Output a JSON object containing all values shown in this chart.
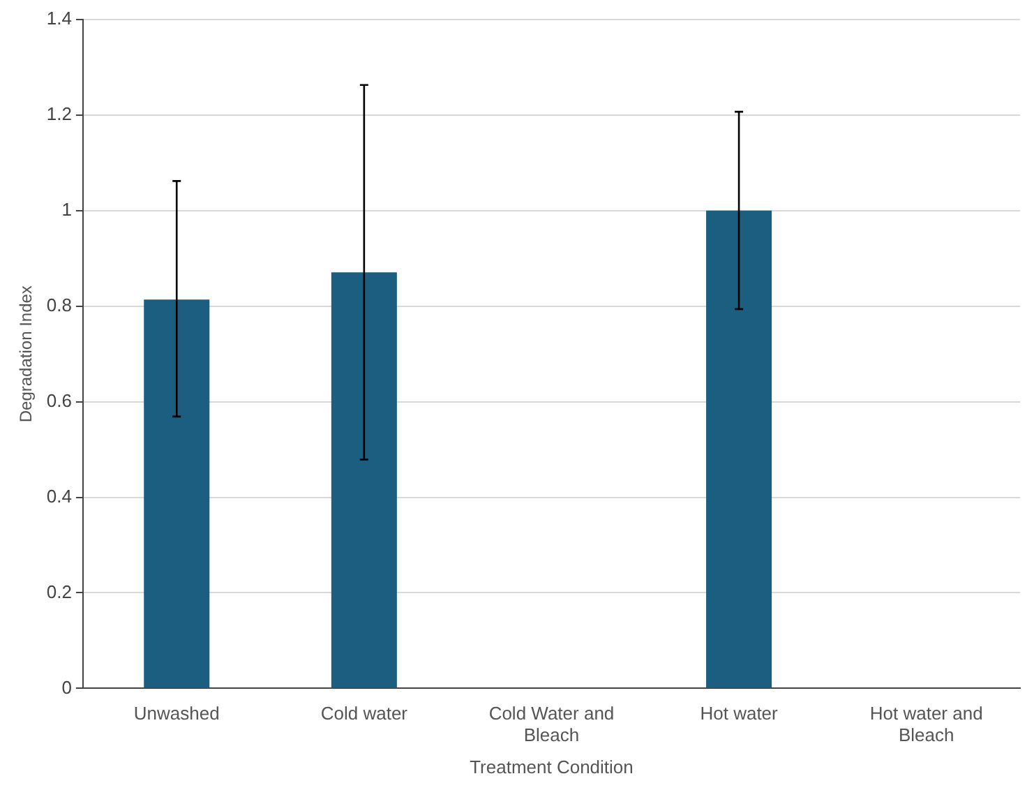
{
  "chart_data": {
    "type": "bar",
    "xlabel": "Treatment Condition",
    "ylabel": "Degradation Index",
    "categories": [
      "Unwashed",
      "Cold water",
      "Cold Water and Bleach",
      "Hot water",
      "Hot water and Bleach"
    ],
    "values": [
      0.814,
      0.871,
      null,
      1.0,
      null
    ],
    "errors": [
      [
        0.569,
        1.062
      ],
      [
        0.479,
        1.263
      ],
      null,
      [
        0.794,
        1.207
      ],
      null
    ],
    "color": "#1b5e80",
    "ylim": [
      0,
      1.4
    ],
    "yticks": [
      0,
      0.2,
      0.4,
      0.6,
      0.8,
      1,
      1.2,
      1.4
    ],
    "grid": "y",
    "legend": false
  }
}
